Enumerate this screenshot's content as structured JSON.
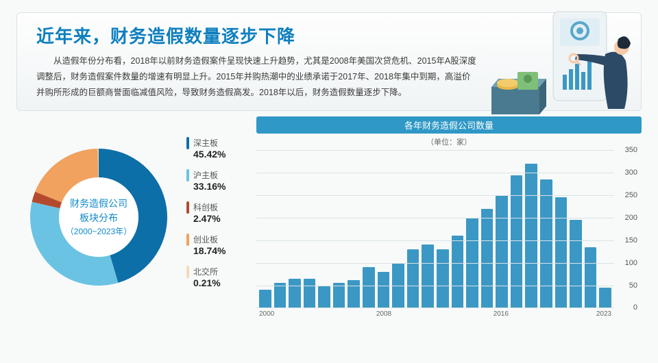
{
  "header": {
    "title": "近年来，财务造假数量逐步下降",
    "body": "从造假年份分布看，2018年以前财务造假案件呈现快速上升趋势，尤其是2008年美国次贷危机、2015年A股深度调整后，财务造假案件数量的增速有明显上升。2015年并购热潮中的业绩承诺于2017年、2018年集中到期，高溢价并购所形成的巨额商誉面临减值风险，导致财务造假高发。2018年以后，财务造假数量逐步下降。"
  },
  "donut": {
    "center_line1": "财务造假公司",
    "center_line2": "板块分布",
    "center_line3": "（2000~2023年）",
    "inner_radius": 58,
    "outer_radius": 100,
    "bg": "#ffffff",
    "slices": [
      {
        "label": "深主板",
        "value": 45.42,
        "pct": "45.42%",
        "color": "#0d6fa8"
      },
      {
        "label": "沪主板",
        "value": 33.16,
        "pct": "33.16%",
        "color": "#6bc3e3"
      },
      {
        "label": "科创板",
        "value": 2.47,
        "pct": "2.47%",
        "color": "#b34a2e"
      },
      {
        "label": "创业板",
        "value": 18.74,
        "pct": "18.74%",
        "color": "#f0a25e"
      },
      {
        "label": "北交所",
        "value": 0.21,
        "pct": "0.21%",
        "color": "#f5d9b5"
      }
    ]
  },
  "bar": {
    "title": "各年财务造假公司数量",
    "unit": "（单位：家）",
    "ymax": 350,
    "ytick_step": 50,
    "bar_color": "#3b98c4",
    "grid_color": "#d9e2e4",
    "years": [
      2000,
      2001,
      2002,
      2003,
      2004,
      2005,
      2006,
      2007,
      2008,
      2009,
      2010,
      2011,
      2012,
      2013,
      2014,
      2015,
      2016,
      2017,
      2018,
      2019,
      2020,
      2021,
      2022,
      2023
    ],
    "values": [
      40,
      55,
      65,
      65,
      48,
      55,
      62,
      90,
      80,
      98,
      130,
      140,
      130,
      160,
      200,
      220,
      250,
      295,
      320,
      285,
      245,
      195,
      135,
      45
    ],
    "x_show": [
      2000,
      2008,
      2016,
      2023
    ]
  },
  "colors": {
    "title": "#0e7fbf",
    "text": "#3a3a3a",
    "panel_border": "#d8e2e4"
  }
}
